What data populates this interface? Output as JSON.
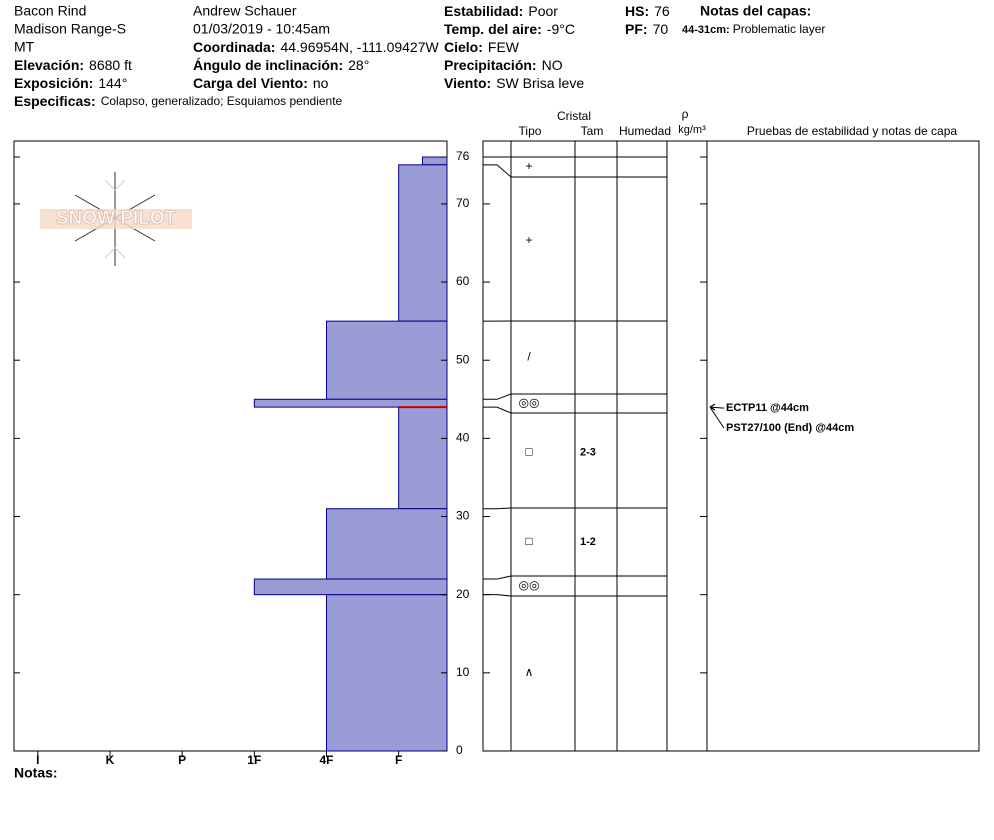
{
  "header": {
    "location": [
      "Bacon Rind",
      "Madison Range-S",
      "MT"
    ],
    "observer": "Andrew Schauer",
    "datetime": "01/03/2019 - 10:45am",
    "fields": [
      {
        "label": "Elevación:",
        "value": "8680 ft"
      },
      {
        "label": "Exposición:",
        "value": "144°"
      },
      {
        "label": "Especificas:",
        "value": "Colapso, generalizado; Esquiamos pendiente"
      },
      {
        "label": "Coordinada:",
        "value": "44.96954N, -111.09427W"
      },
      {
        "label": "Ángulo de inclinación:",
        "value": "28°"
      },
      {
        "label": "Carga del Viento:",
        "value": "no"
      },
      {
        "label": "Estabilidad:",
        "value": "Poor"
      },
      {
        "label": "Temp. del aire:",
        "value": "-9°C"
      },
      {
        "label": "Cielo:",
        "value": "FEW"
      },
      {
        "label": "Precipitación:",
        "value": "NO"
      },
      {
        "label": "Viento:",
        "value": "SW Brisa leve"
      },
      {
        "label": "HS:",
        "value": "76"
      },
      {
        "label": "PF:",
        "value": "70"
      }
    ],
    "layer_notes_title": "Notas del capas:",
    "layer_notes": [
      {
        "label": "44-31cm:",
        "value": "Problematic layer"
      }
    ]
  },
  "logo": "SNOW PILOT",
  "columns": {
    "crystal": "Cristal",
    "type": "Tipo",
    "size": "Tam",
    "moisture": "Humedad",
    "density": "ρ",
    "density_unit": "kg/m³",
    "tests": "Pruebas de estabilidad y notas de capa"
  },
  "depth_axis": {
    "lim": [
      0,
      76
    ],
    "ticks": [
      0,
      10,
      20,
      30,
      40,
      50,
      60,
      70,
      76
    ]
  },
  "hardness_axis": {
    "lim": [
      6.33,
      0.33
    ],
    "ticks": [
      {
        "value": 6,
        "label": "I"
      },
      {
        "value": 5,
        "label": "K"
      },
      {
        "value": 4,
        "label": "P"
      },
      {
        "value": 3,
        "label": "1F"
      },
      {
        "value": 2,
        "label": "4F"
      },
      {
        "value": 1,
        "label": "F"
      }
    ]
  },
  "layers": [
    {
      "top": 76,
      "bottom": 75,
      "hardness": 0.67,
      "grain": "+"
    },
    {
      "top": 75,
      "bottom": 55,
      "hardness": 1,
      "grain": "+"
    },
    {
      "top": 55,
      "bottom": 45,
      "hardness": 2,
      "grain": "/"
    },
    {
      "top": 45,
      "bottom": 44,
      "hardness": 3,
      "grain": "◎◎"
    },
    {
      "top": 44,
      "bottom": 31,
      "hardness": 1,
      "grain": "□",
      "size": "2-3"
    },
    {
      "top": 31,
      "bottom": 22,
      "hardness": 2,
      "grain": "□",
      "size": "1-2"
    },
    {
      "top": 22,
      "bottom": 20,
      "hardness": 3,
      "grain": "◎◎"
    },
    {
      "top": 20,
      "bottom": 0,
      "hardness": 2,
      "grain": "∧"
    }
  ],
  "tests": [
    {
      "label": "ECTP11 @44cm",
      "depth": 44
    },
    {
      "label": "PST27/100 (End) @44cm",
      "depth": 44
    }
  ],
  "notes_label": "Notas:"
}
